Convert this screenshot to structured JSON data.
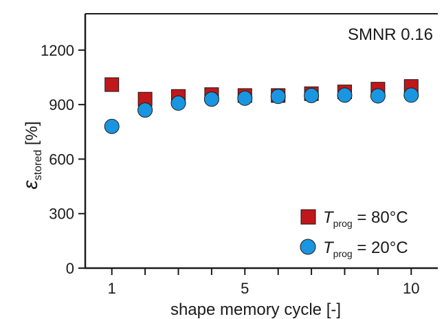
{
  "chart_data": {
    "type": "scatter",
    "annotation": "SMNR 0.16",
    "xlabel": "shape memory cycle [-]",
    "ylabel": {
      "symbol": "ε",
      "subscript": "stored",
      "unit": "[%]"
    },
    "xlim": [
      0.2,
      10.8
    ],
    "ylim": [
      0,
      1400
    ],
    "x_ticks": [
      1,
      2,
      3,
      4,
      5,
      6,
      7,
      8,
      9,
      10
    ],
    "x_tick_labels": [
      {
        "x": 1,
        "label": "1"
      },
      {
        "x": 5,
        "label": "5"
      },
      {
        "x": 10,
        "label": "10"
      }
    ],
    "y_ticks": [
      0,
      300,
      600,
      900,
      1200
    ],
    "y_tick_labels": [
      "0",
      "300",
      "600",
      "900",
      "1200"
    ],
    "legend_position": "bottom-right",
    "series": [
      {
        "name": "T_prog = 80°C",
        "legend": {
          "symbol": "T",
          "subscript": "prog",
          "rest": " = 80°C"
        },
        "marker": "square",
        "color": "#c0171b",
        "x": [
          1,
          2,
          3,
          4,
          5,
          6,
          7,
          8,
          9,
          10
        ],
        "y": [
          1010,
          930,
          945,
          955,
          950,
          950,
          960,
          970,
          985,
          1000
        ]
      },
      {
        "name": "T_prog = 20°C",
        "legend": {
          "symbol": "T",
          "subscript": "prog",
          "rest": " = 20°C"
        },
        "marker": "circle",
        "color": "#1a95e0",
        "x": [
          1,
          2,
          3,
          4,
          5,
          6,
          7,
          8,
          9,
          10
        ],
        "y": [
          780,
          870,
          908,
          930,
          935,
          945,
          950,
          952,
          948,
          952
        ]
      }
    ]
  }
}
